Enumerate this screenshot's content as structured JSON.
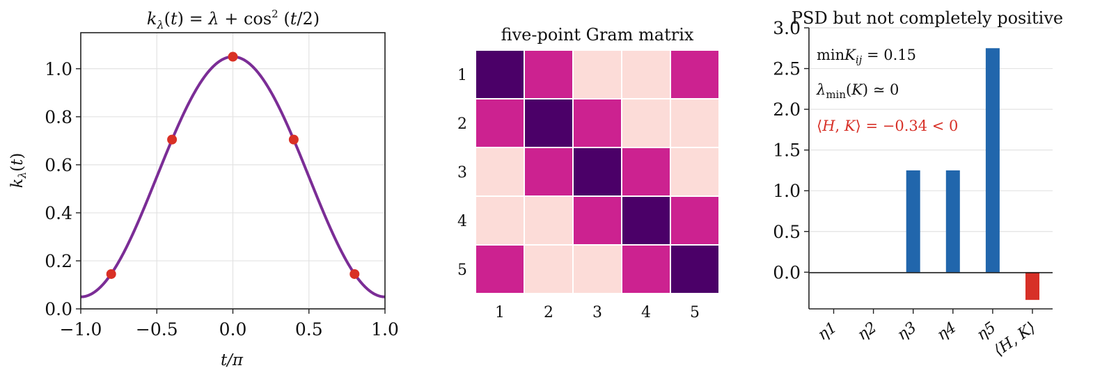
{
  "chart_data": [
    {
      "type": "line",
      "title": "kλ(t) = λ + cos² (t/2)",
      "xlabel": "t/π",
      "ylabel": "kλ(t)",
      "xlim": [
        -1.0,
        1.0
      ],
      "ylim": [
        0.0,
        1.15
      ],
      "xticks": [
        "−1.0",
        "−0.5",
        "0.0",
        "0.5",
        "1.0"
      ],
      "yticks": [
        "0.0",
        "0.2",
        "0.4",
        "0.6",
        "0.8",
        "1.0"
      ],
      "grid": true,
      "lambda": 0.05,
      "curve_color": "#7b2d96",
      "point_color": "#d93025",
      "points": [
        {
          "x": -0.8,
          "y": 0.145
        },
        {
          "x": -0.4,
          "y": 0.705
        },
        {
          "x": 0.0,
          "y": 1.05
        },
        {
          "x": 0.4,
          "y": 0.705
        },
        {
          "x": 0.8,
          "y": 0.145
        }
      ]
    },
    {
      "type": "heatmap",
      "title": "five-point Gram matrix",
      "row_labels": [
        "1",
        "2",
        "3",
        "4",
        "5"
      ],
      "col_labels": [
        "1",
        "2",
        "3",
        "4",
        "5"
      ],
      "values": [
        [
          1.05,
          0.705,
          0.15,
          0.15,
          0.705
        ],
        [
          0.705,
          1.05,
          0.705,
          0.15,
          0.15
        ],
        [
          0.15,
          0.705,
          1.05,
          0.705,
          0.15
        ],
        [
          0.15,
          0.15,
          0.705,
          1.05,
          0.705
        ],
        [
          0.705,
          0.15,
          0.15,
          0.705,
          1.05
        ]
      ],
      "colors": {
        "high": "#4b0068",
        "mid": "#cc2290",
        "low": "#fcdcd8"
      }
    },
    {
      "type": "bar",
      "title": "PSD but not completely positive",
      "categories": [
        "η1",
        "η2",
        "η3",
        "η4",
        "η5",
        "⟨H, K⟩"
      ],
      "values": [
        0.0,
        0.0,
        1.25,
        1.25,
        2.75,
        -0.34
      ],
      "ylim": [
        -0.45,
        3.0
      ],
      "yticks": [
        "0.0",
        "0.5",
        "1.0",
        "1.5",
        "2.0",
        "2.5",
        "3.0"
      ],
      "grid": true,
      "bar_color": "#2166ac",
      "negative_color": "#d73027",
      "annotations": [
        {
          "text": "min Kij = 0.15",
          "color": "#111111"
        },
        {
          "text": "λmin(K) ≃ 0",
          "color": "#111111"
        },
        {
          "text": "⟨H, K⟩ = −0.34 < 0",
          "color": "#d73027"
        }
      ]
    }
  ]
}
